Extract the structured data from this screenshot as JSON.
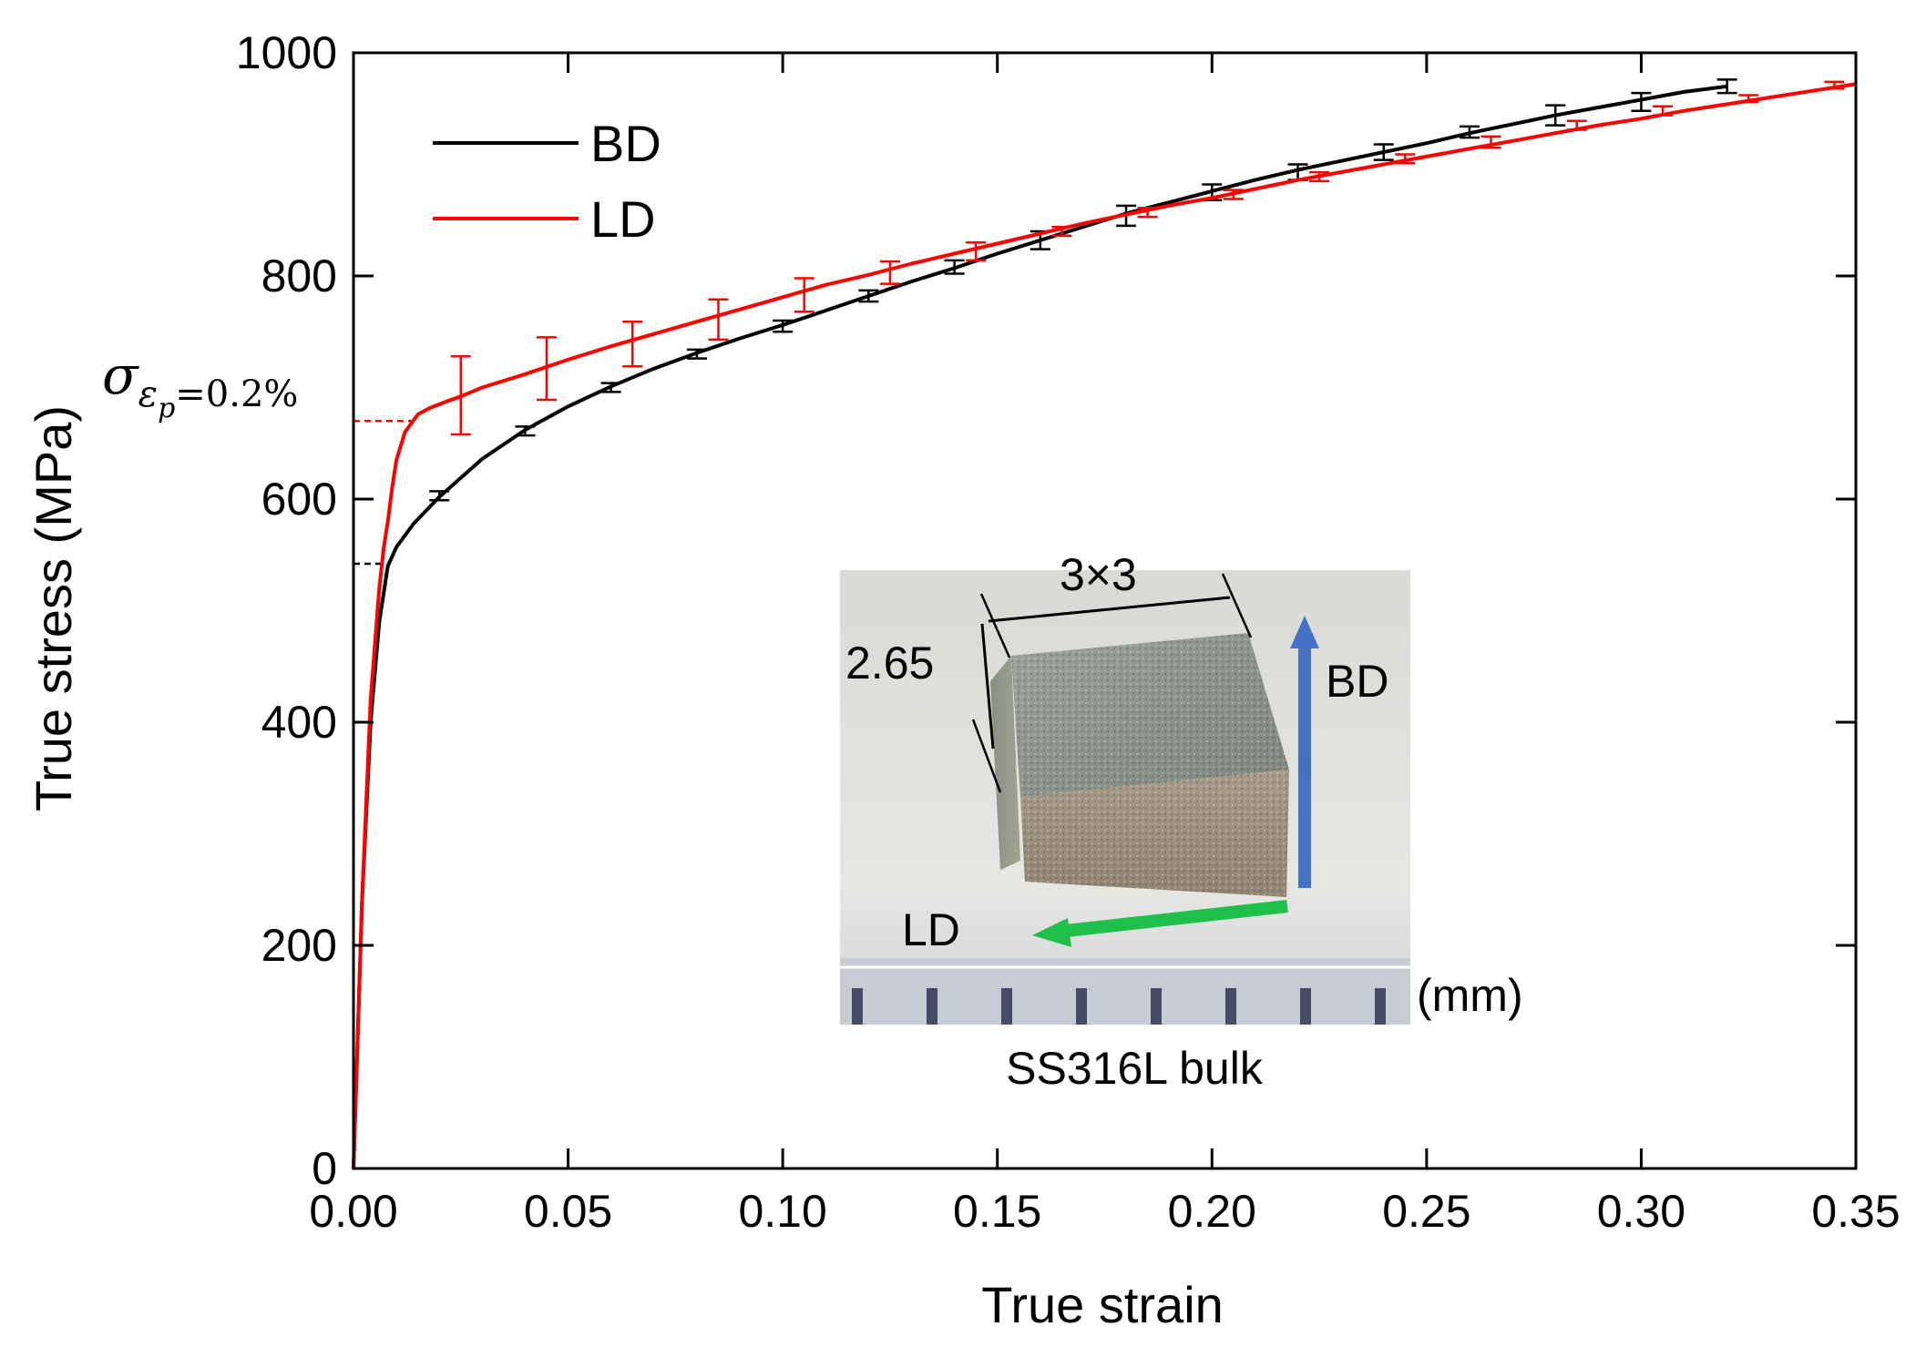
{
  "chart_data": {
    "type": "line",
    "title": "",
    "xlabel": "True strain",
    "ylabel": "True stress (MPa)",
    "xlim": [
      0.0,
      0.35
    ],
    "ylim": [
      0,
      1000
    ],
    "x_ticks": [
      0.0,
      0.05,
      0.1,
      0.15,
      0.2,
      0.25,
      0.3,
      0.35
    ],
    "x_tick_labels": [
      "0.00",
      "0.05",
      "0.10",
      "0.15",
      "0.20",
      "0.25",
      "0.30",
      "0.35"
    ],
    "y_ticks": [
      0,
      200,
      400,
      600,
      800,
      1000
    ],
    "y_tick_labels": [
      "0",
      "200",
      "400",
      "600",
      "800",
      "1000"
    ],
    "grid": false,
    "legend_position": "top-left",
    "series": [
      {
        "name": "BD",
        "color": "#000000",
        "x": [
          0.0,
          0.002,
          0.004,
          0.006,
          0.007,
          0.008,
          0.01,
          0.014,
          0.02,
          0.03,
          0.04,
          0.05,
          0.06,
          0.07,
          0.08,
          0.09,
          0.1,
          0.11,
          0.12,
          0.13,
          0.14,
          0.15,
          0.16,
          0.17,
          0.18,
          0.19,
          0.2,
          0.21,
          0.22,
          0.23,
          0.24,
          0.25,
          0.26,
          0.27,
          0.28,
          0.29,
          0.3,
          0.31,
          0.32
        ],
        "values": [
          0,
          240,
          400,
          490,
          515,
          540,
          557,
          578,
          602,
          636,
          662,
          683,
          701,
          717,
          731,
          744,
          756,
          769,
          782,
          795,
          807,
          820,
          832,
          844,
          856,
          866,
          876,
          886,
          895,
          903,
          911,
          919,
          928,
          936,
          944,
          951,
          958,
          965,
          970
        ],
        "error_bars": {
          "x": [
            0.02,
            0.04,
            0.06,
            0.08,
            0.1,
            0.12,
            0.14,
            0.16,
            0.18,
            0.2,
            0.22,
            0.24,
            0.26,
            0.28,
            0.3,
            0.32
          ],
          "y": [
            603,
            661,
            700,
            730,
            755,
            782,
            808,
            832,
            854,
            875,
            893,
            911,
            929,
            944,
            956,
            970
          ],
          "err": [
            4,
            4,
            4,
            4,
            5,
            5,
            6,
            8,
            9,
            7,
            7,
            7,
            5,
            9,
            8,
            6
          ]
        }
      },
      {
        "name": "LD",
        "color": "#ff0000",
        "x": [
          0.0,
          0.002,
          0.004,
          0.006,
          0.007,
          0.008,
          0.009,
          0.01,
          0.012,
          0.015,
          0.018,
          0.022,
          0.025,
          0.03,
          0.04,
          0.05,
          0.06,
          0.07,
          0.08,
          0.09,
          0.1,
          0.11,
          0.12,
          0.13,
          0.14,
          0.15,
          0.16,
          0.17,
          0.18,
          0.19,
          0.2,
          0.21,
          0.22,
          0.23,
          0.24,
          0.25,
          0.26,
          0.27,
          0.28,
          0.29,
          0.3,
          0.31,
          0.32,
          0.33,
          0.34,
          0.35
        ],
        "values": [
          0,
          240,
          420,
          520,
          555,
          580,
          610,
          635,
          660,
          676,
          682,
          688,
          692,
          700,
          712,
          725,
          737,
          748,
          759,
          770,
          781,
          792,
          801,
          811,
          820,
          829,
          838,
          847,
          855,
          863,
          870,
          878,
          886,
          893,
          900,
          907,
          914,
          921,
          928,
          935,
          941,
          948,
          954,
          960,
          966,
          972
        ],
        "error_bars": {
          "x": [
            0.025,
            0.045,
            0.065,
            0.085,
            0.105,
            0.125,
            0.145,
            0.165,
            0.185,
            0.205,
            0.225,
            0.245,
            0.265,
            0.285,
            0.305,
            0.325,
            0.345
          ],
          "y": [
            693,
            717,
            739,
            761,
            783,
            803,
            822,
            840,
            857,
            873,
            889,
            905,
            920,
            935,
            948,
            959,
            971
          ],
          "err": [
            35,
            28,
            20,
            18,
            15,
            10,
            8,
            4,
            4,
            4,
            4,
            4,
            5,
            4,
            4,
            3,
            3
          ]
        }
      }
    ],
    "reference_lines": [
      {
        "series": "LD",
        "y": 670,
        "x_end": 0.015
      },
      {
        "series": "BD",
        "y": 542,
        "x_end": 0.007
      }
    ],
    "annotation": {
      "sigma": "σ",
      "subscript_epsilon": "ε",
      "subscript_p": "p",
      "subscript_value": "=0.2%"
    },
    "inset": {
      "dimension_top": "3×3",
      "dimension_side": "2.65",
      "arrow_up_label": "BD",
      "arrow_left_label": "LD",
      "unit_label": "(mm)",
      "caption": "SS316L bulk",
      "arrow_up_color": "#4472c4",
      "arrow_left_color": "#1fbf4a"
    }
  }
}
